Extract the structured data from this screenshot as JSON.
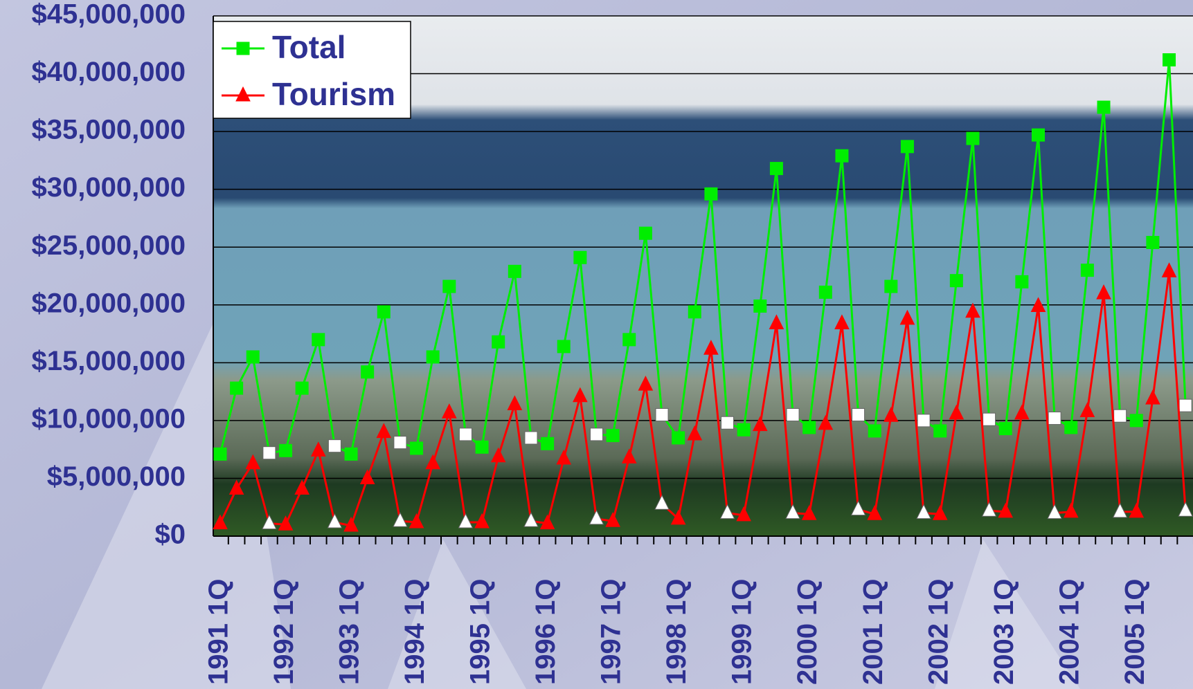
{
  "chart_data": {
    "type": "line",
    "categories": [
      "1991 1Q",
      null,
      null,
      null,
      "1992 1Q",
      null,
      null,
      null,
      "1993 1Q",
      null,
      null,
      null,
      "1994 1Q",
      null,
      null,
      null,
      "1995 1Q",
      null,
      null,
      null,
      "1996 1Q",
      null,
      null,
      null,
      "1997 1Q",
      null,
      null,
      null,
      "1998 1Q",
      null,
      null,
      null,
      "1999 1Q",
      null,
      null,
      null,
      "2000 1Q",
      null,
      null,
      null,
      "2001 1Q",
      null,
      null,
      null,
      "2002 1Q",
      null,
      null,
      null,
      "2003 1Q",
      null,
      null,
      null,
      "2004 1Q",
      null,
      null,
      null,
      "2005 1Q",
      null,
      null,
      null
    ],
    "series": [
      {
        "name": "Total",
        "color": "#00ee00",
        "marker": "square",
        "values": [
          7100000,
          12800000,
          15500000,
          7200000,
          7400000,
          12800000,
          17000000,
          7800000,
          7100000,
          14200000,
          19400000,
          8100000,
          7600000,
          15500000,
          21600000,
          8800000,
          7700000,
          16800000,
          22900000,
          8500000,
          8000000,
          16400000,
          24100000,
          8800000,
          8700000,
          17000000,
          26200000,
          10500000,
          8500000,
          19400000,
          29600000,
          9800000,
          9200000,
          19900000,
          31800000,
          10500000,
          9400000,
          21100000,
          32900000,
          10500000,
          9100000,
          21600000,
          33700000,
          10000000,
          9100000,
          22100000,
          34400000,
          10100000,
          9300000,
          22000000,
          34700000,
          10200000,
          9400000,
          23000000,
          37100000,
          10400000,
          10000000,
          25400000,
          41200000,
          11300000
        ]
      },
      {
        "name": "Tourism",
        "color": "#ff0000",
        "marker": "triangle",
        "values": [
          1100000,
          4100000,
          6300000,
          1100000,
          1000000,
          4100000,
          7400000,
          1200000,
          900000,
          5000000,
          9000000,
          1300000,
          1200000,
          6300000,
          10700000,
          1200000,
          1200000,
          6900000,
          11400000,
          1300000,
          1100000,
          6700000,
          12100000,
          1500000,
          1300000,
          6800000,
          13100000,
          2800000,
          1500000,
          8800000,
          16200000,
          2000000,
          1800000,
          9600000,
          18400000,
          2000000,
          1900000,
          9700000,
          18400000,
          2300000,
          1900000,
          10400000,
          18800000,
          2000000,
          1900000,
          10600000,
          19400000,
          2200000,
          2100000,
          10600000,
          19900000,
          2000000,
          2100000,
          10800000,
          21000000,
          2100000,
          2100000,
          11900000,
          22900000,
          2200000
        ]
      }
    ],
    "ylim": [
      0,
      45000000
    ],
    "yticks": [
      {
        "value": 0,
        "label": "$0"
      },
      {
        "value": 5000000,
        "label": "$5,000,000"
      },
      {
        "value": 10000000,
        "label": "$10,000,000"
      },
      {
        "value": 15000000,
        "label": "$15,000,000"
      },
      {
        "value": 20000000,
        "label": "$20,000,000"
      },
      {
        "value": 25000000,
        "label": "$25,000,000"
      },
      {
        "value": 30000000,
        "label": "$30,000,000"
      },
      {
        "value": 35000000,
        "label": "$35,000,000"
      },
      {
        "value": 40000000,
        "label": "$40,000,000"
      },
      {
        "value": 45000000,
        "label": "$45,000,000"
      }
    ],
    "grid": true,
    "legend": "top-left"
  }
}
